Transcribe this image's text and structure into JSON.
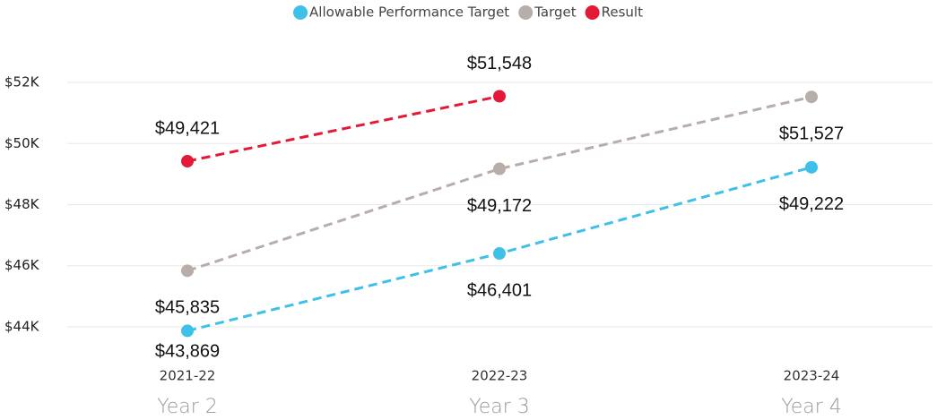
{
  "chart_data": {
    "type": "line",
    "categories": [
      "2021-22",
      "2022-23",
      "2023-24"
    ],
    "category_subtitles": [
      "Year 2",
      "Year 3",
      "Year 4"
    ],
    "ylim": [
      43500,
      52500
    ],
    "yticks": [
      {
        "value": 44000,
        "label": "$44K"
      },
      {
        "value": 46000,
        "label": "$46K"
      },
      {
        "value": 48000,
        "label": "$48K"
      },
      {
        "value": 50000,
        "label": "$50K"
      },
      {
        "value": 52000,
        "label": "$52K"
      }
    ],
    "grid": true,
    "legend": "top",
    "series": [
      {
        "name": "Allowable Performance Target",
        "color": "#3fc0e8",
        "label_position": "below",
        "values": [
          43869,
          46401,
          49222
        ],
        "value_labels": [
          "$43,869",
          "$46,401",
          "$49,222"
        ]
      },
      {
        "name": "Target",
        "color": "#b8aea9",
        "label_position": "below",
        "values": [
          45835,
          49172,
          51527
        ],
        "value_labels": [
          "$45,835",
          "$49,172",
          "$51,527"
        ]
      },
      {
        "name": "Result",
        "color": "#e31937",
        "label_position": "above",
        "values": [
          49421,
          51548,
          null
        ],
        "value_labels": [
          "$49,421",
          "$51,548",
          null
        ]
      }
    ]
  }
}
